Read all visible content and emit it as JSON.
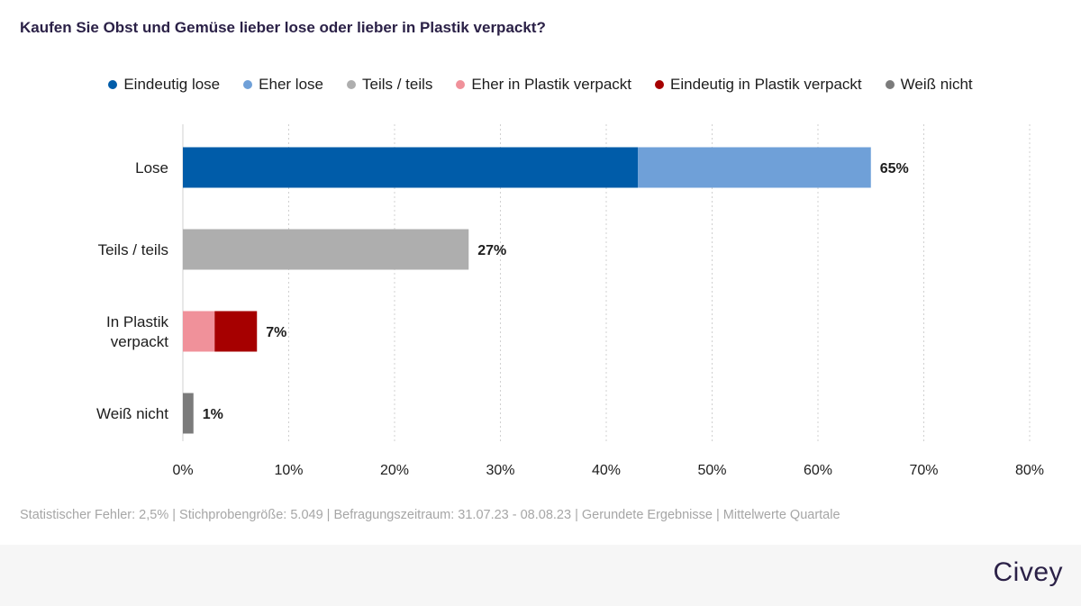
{
  "chart_data": {
    "type": "bar",
    "orientation": "horizontal",
    "stacked": true,
    "title": "Kaufen Sie Obst und Gemüse lieber lose oder lieber in Plastik verpackt?",
    "categories": [
      "Lose",
      "Teils / teils",
      "In Plastik verpackt",
      "Weiß nicht"
    ],
    "series": [
      {
        "name": "Eindeutig lose",
        "color": "#005ca9",
        "values": [
          43,
          0,
          0,
          0
        ]
      },
      {
        "name": "Eher lose",
        "color": "#6fa0d8",
        "values": [
          22,
          0,
          0,
          0
        ]
      },
      {
        "name": "Teils / teils",
        "color": "#aeaeae",
        "values": [
          0,
          27,
          0,
          0
        ]
      },
      {
        "name": "Eher in Plastik verpackt",
        "color": "#f0919a",
        "values": [
          0,
          0,
          3,
          0
        ]
      },
      {
        "name": "Eindeutig in Plastik verpackt",
        "color": "#a60000",
        "values": [
          0,
          0,
          4,
          0
        ]
      },
      {
        "name": "Weiß nicht",
        "color": "#7b7b7b",
        "values": [
          0,
          0,
          0,
          1
        ]
      }
    ],
    "totals": [
      65,
      27,
      7,
      1
    ],
    "total_labels": [
      "65%",
      "27%",
      "7%",
      "1%"
    ],
    "x_ticks": [
      0,
      10,
      20,
      30,
      40,
      50,
      60,
      70,
      80
    ],
    "x_tick_labels": [
      "0%",
      "10%",
      "20%",
      "30%",
      "40%",
      "50%",
      "60%",
      "70%",
      "80%"
    ],
    "xlim": [
      0,
      80
    ],
    "xlabel": "",
    "ylabel": "",
    "grid": true,
    "legend_position": "top"
  },
  "footnote": "Statistischer Fehler: 2,5% | Stichprobengröße: 5.049 | Befragungszeitraum: 31.07.23 - 08.08.23 | Gerundete Ergebnisse | Mittelwerte Quartale",
  "brand": "Civey"
}
